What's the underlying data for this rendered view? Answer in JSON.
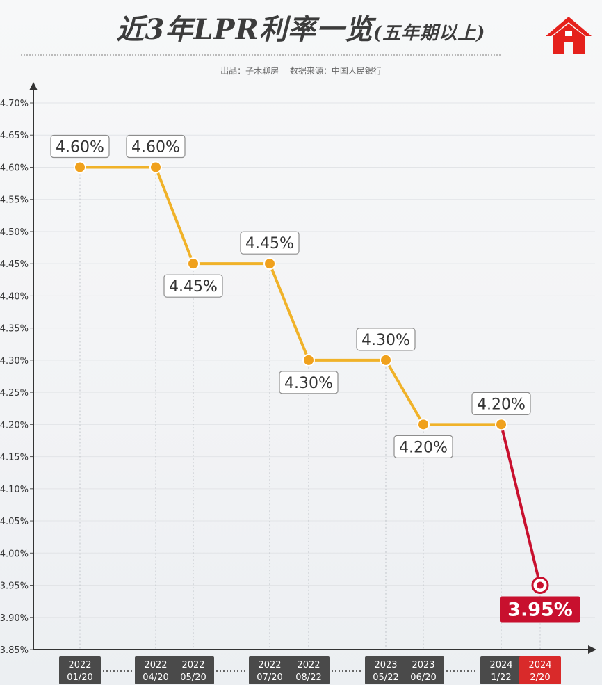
{
  "title": {
    "main": "近3年LPR利率一览",
    "sub": "(五年期以上)"
  },
  "source": {
    "producer": "出品：子木聊房",
    "data_source": "数据来源：中国人民银行"
  },
  "colors": {
    "line": "#f0b229",
    "point": "#f0a11d",
    "last_segment": "#c8102e",
    "date_label_bg": "#4a4a4a",
    "last_date_label_bg": "#d92a2a",
    "axis": "#333333",
    "house_icon": "#e5211c"
  },
  "icons": {
    "logo": "house-icon"
  },
  "chart_data": {
    "type": "line",
    "title": "近3年LPR利率一览(五年期以上)",
    "xlabel": "",
    "ylabel": "",
    "ylim": [
      3.85,
      4.7
    ],
    "yticks": [
      "4.70%",
      "4.65%",
      "4.60%",
      "4.55%",
      "4.50%",
      "4.45%",
      "4.40%",
      "4.35%",
      "4.30%",
      "4.25%",
      "4.20%",
      "4.15%",
      "4.10%",
      "4.05%",
      "4.00%",
      "3.95%",
      "3.90%",
      "3.85%"
    ],
    "grid": true,
    "points": [
      {
        "year": "2022",
        "date": "01/20",
        "value": 4.6,
        "label": "4.60%",
        "label_pos": "above"
      },
      {
        "year": "2022",
        "date": "04/20",
        "value": 4.6,
        "label": "4.60%",
        "label_pos": "above"
      },
      {
        "year": "2022",
        "date": "05/20",
        "value": 4.45,
        "label": "4.45%",
        "label_pos": "below"
      },
      {
        "year": "2022",
        "date": "07/20",
        "value": 4.45,
        "label": "4.45%",
        "label_pos": "above"
      },
      {
        "year": "2022",
        "date": "08/22",
        "value": 4.3,
        "label": "4.30%",
        "label_pos": "below"
      },
      {
        "year": "2023",
        "date": "05/22",
        "value": 4.3,
        "label": "4.30%",
        "label_pos": "above"
      },
      {
        "year": "2023",
        "date": "06/20",
        "value": 4.2,
        "label": "4.20%",
        "label_pos": "below"
      },
      {
        "year": "2024",
        "date": "1/22",
        "value": 4.2,
        "label": "4.20%",
        "label_pos": "above"
      },
      {
        "year": "2024",
        "date": "2/20",
        "value": 3.95,
        "label": "3.95%",
        "label_pos": "below",
        "highlight": true
      }
    ]
  }
}
